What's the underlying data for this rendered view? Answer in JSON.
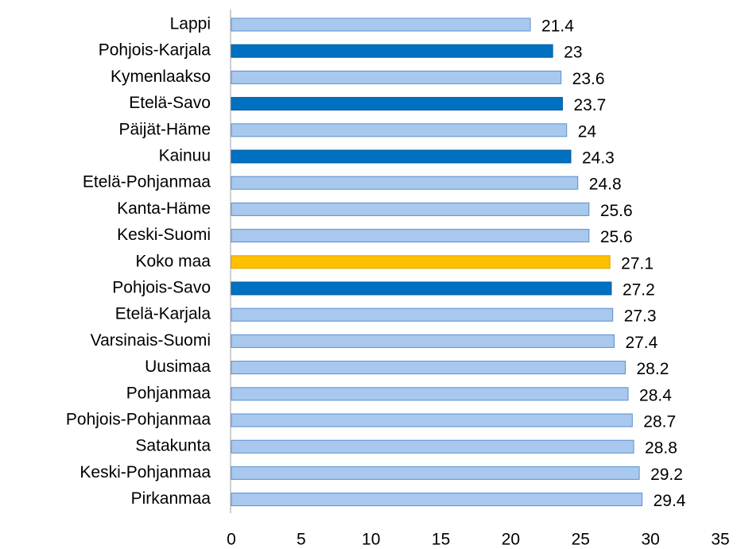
{
  "chart_data": {
    "type": "bar",
    "categories": [
      "Lappi",
      "Pohjois-Karjala",
      "Kymenlaakso",
      "Etelä-Savo",
      "Päijät-Häme",
      "Kainuu",
      "Etelä-Pohjanmaa",
      "Kanta-Häme",
      "Keski-Suomi",
      "Koko maa",
      "Pohjois-Savo",
      "Etelä-Karjala",
      "Varsinais-Suomi",
      "Uusimaa",
      "Pohjanmaa",
      "Pohjois-Pohjanmaa",
      "Satakunta",
      "Keski-Pohjanmaa",
      "Pirkanmaa"
    ],
    "values": [
      21.4,
      23,
      23.6,
      23.7,
      24,
      24.3,
      24.8,
      25.6,
      25.6,
      27.1,
      27.2,
      27.3,
      27.4,
      28.2,
      28.4,
      28.7,
      28.8,
      29.2,
      29.4
    ],
    "colors": [
      "#a9c8ee",
      "#0070c0",
      "#a9c8ee",
      "#0070c0",
      "#a9c8ee",
      "#0070c0",
      "#a9c8ee",
      "#a9c8ee",
      "#a9c8ee",
      "#ffc000",
      "#0070c0",
      "#a9c8ee",
      "#a9c8ee",
      "#a9c8ee",
      "#a9c8ee",
      "#a9c8ee",
      "#a9c8ee",
      "#a9c8ee",
      "#a9c8ee"
    ],
    "xlim": [
      0,
      35
    ],
    "xticks": [
      0,
      5,
      10,
      15,
      20,
      25,
      30,
      35
    ]
  }
}
